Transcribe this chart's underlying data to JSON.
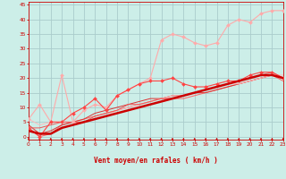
{
  "background_color": "#cceee8",
  "grid_color": "#aacccc",
  "xlabel": "Vent moyen/en rafales ( km/h )",
  "xlabel_color": "#cc0000",
  "xlabel_fontsize": 5.5,
  "xtick_color": "#cc0000",
  "ytick_color": "#cc0000",
  "xmin": 0,
  "xmax": 23,
  "ymin": -1,
  "ymax": 46,
  "yticks": [
    0,
    5,
    10,
    15,
    20,
    25,
    30,
    35,
    40,
    45
  ],
  "xticks": [
    0,
    1,
    2,
    3,
    4,
    5,
    6,
    7,
    8,
    9,
    10,
    11,
    12,
    13,
    14,
    15,
    16,
    17,
    18,
    19,
    20,
    21,
    22,
    23
  ],
  "series": [
    {
      "x": [
        0,
        1,
        2,
        3,
        4,
        5,
        6,
        7,
        8,
        9,
        10,
        11,
        12,
        13,
        14,
        15,
        16,
        17,
        18,
        19,
        20,
        21,
        22,
        23
      ],
      "y": [
        6,
        11,
        5,
        21,
        5,
        9,
        11,
        10,
        14,
        16,
        18,
        20,
        33,
        35,
        34,
        32,
        31,
        32,
        38,
        40,
        39,
        42,
        43,
        43
      ],
      "color": "#ffaaaa",
      "marker": "D",
      "markersize": 2,
      "linewidth": 0.8,
      "zorder": 3
    },
    {
      "x": [
        0,
        1,
        2,
        3,
        4,
        5,
        6,
        7,
        8,
        9,
        10,
        11,
        12,
        13,
        14,
        15,
        16,
        17,
        18,
        19,
        20,
        21,
        22,
        23
      ],
      "y": [
        3,
        0,
        5,
        5,
        8,
        10,
        13,
        9,
        14,
        16,
        18,
        19,
        19,
        20,
        18,
        17,
        17,
        18,
        19,
        19,
        21,
        22,
        22,
        20
      ],
      "color": "#ff4444",
      "marker": "D",
      "markersize": 2,
      "linewidth": 0.8,
      "zorder": 4
    },
    {
      "x": [
        0,
        1,
        2,
        3,
        4,
        5,
        6,
        7,
        8,
        9,
        10,
        11,
        12,
        13,
        14,
        15,
        16,
        17,
        18,
        19,
        20,
        21,
        22,
        23
      ],
      "y": [
        2,
        1,
        1,
        3,
        4,
        5,
        6,
        7,
        8,
        9,
        10,
        11,
        12,
        13,
        14,
        15,
        16,
        17,
        18,
        19,
        20,
        21,
        21,
        20
      ],
      "color": "#cc0000",
      "marker": null,
      "linewidth": 1.8,
      "zorder": 5
    },
    {
      "x": [
        0,
        1,
        2,
        3,
        4,
        5,
        6,
        7,
        8,
        9,
        10,
        11,
        12,
        13,
        14,
        15,
        16,
        17,
        18,
        19,
        20,
        21,
        22,
        23
      ],
      "y": [
        3,
        0,
        1,
        4,
        5,
        6,
        7,
        8,
        9,
        10,
        11,
        12,
        13,
        13,
        13,
        14,
        15,
        16,
        17,
        18,
        19,
        20,
        21,
        19
      ],
      "color": "#ff6666",
      "marker": null,
      "linewidth": 0.7,
      "zorder": 2
    },
    {
      "x": [
        0,
        1,
        2,
        3,
        4,
        5,
        6,
        7,
        8,
        9,
        10,
        11,
        12,
        13,
        14,
        15,
        16,
        17,
        18,
        19,
        20,
        21,
        22,
        23
      ],
      "y": [
        4,
        1,
        2,
        4,
        5,
        6,
        8,
        9,
        10,
        11,
        12,
        13,
        13,
        14,
        14,
        15,
        15,
        16,
        17,
        18,
        19,
        20,
        21,
        20
      ],
      "color": "#dd3333",
      "marker": null,
      "linewidth": 0.7,
      "zorder": 2
    },
    {
      "x": [
        0,
        1,
        2,
        3,
        4,
        5,
        6,
        7,
        8,
        9,
        10,
        11,
        12,
        13,
        14,
        15,
        16,
        17,
        18,
        19,
        20,
        21,
        22,
        23
      ],
      "y": [
        6,
        4,
        5,
        5,
        5,
        5,
        6,
        7,
        9,
        10,
        11,
        12,
        13,
        14,
        14,
        15,
        16,
        17,
        18,
        18,
        19,
        20,
        21,
        21
      ],
      "color": "#ffbbbb",
      "marker": null,
      "linewidth": 0.7,
      "zorder": 2
    },
    {
      "x": [
        0,
        1,
        2,
        3,
        4,
        5,
        6,
        7,
        8,
        9,
        10,
        11,
        12,
        13,
        14,
        15,
        16,
        17,
        18,
        19,
        20,
        21,
        22,
        23
      ],
      "y": [
        3,
        3,
        4,
        5,
        5,
        5,
        7,
        8,
        9,
        11,
        11,
        12,
        13,
        13,
        14,
        15,
        16,
        17,
        18,
        19,
        20,
        21,
        22,
        20
      ],
      "color": "#ee5555",
      "marker": null,
      "linewidth": 0.7,
      "zorder": 2
    }
  ]
}
